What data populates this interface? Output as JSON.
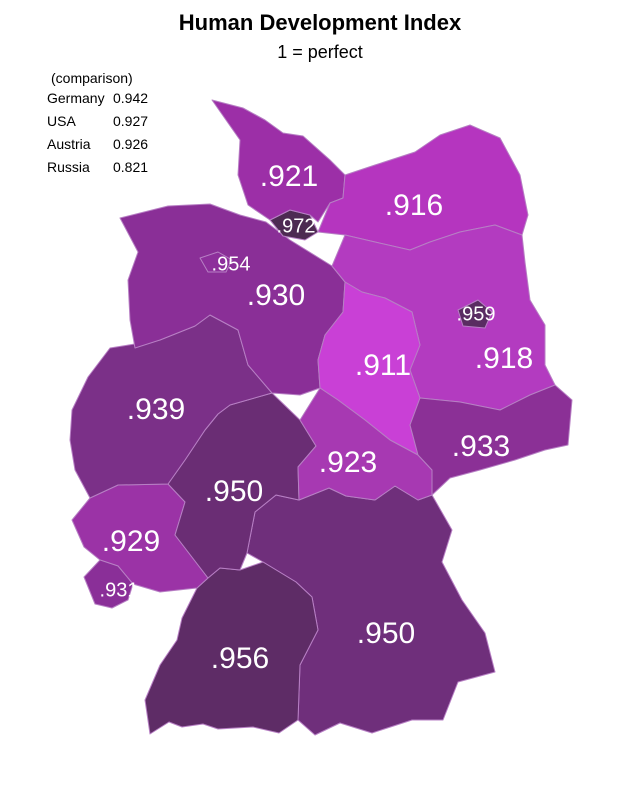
{
  "title": "Human Development Index",
  "subtitle": "1 = perfect",
  "legend": {
    "heading": "(comparison)",
    "rows": [
      {
        "country": "Germany",
        "value": "0.942"
      },
      {
        "country": "USA",
        "value": "0.927"
      },
      {
        "country": "Austria",
        "value": "0.926"
      },
      {
        "country": "Russia",
        "value": "0.821"
      }
    ]
  },
  "states": {
    "schleswig_holstein": {
      "label": ".921",
      "color": "#9c2fa7"
    },
    "hamburg": {
      "label": ".972",
      "color": "#4d2a52"
    },
    "mecklenburg_vorpommern": {
      "label": ".916",
      "color": "#b535bf"
    },
    "bremen": {
      "label": ".954",
      "color": "#8d2f9b"
    },
    "niedersachsen": {
      "label": ".930",
      "color": "#8a2f97"
    },
    "brandenburg": {
      "label": ".918",
      "color": "#b33bc0"
    },
    "berlin": {
      "label": ".959",
      "color": "#5a2c62"
    },
    "sachsen_anhalt": {
      "label": ".911",
      "color": "#c940d6"
    },
    "nordrhein_westfalen": {
      "label": ".939",
      "color": "#7b3088"
    },
    "sachsen": {
      "label": ".933",
      "color": "#8b3096"
    },
    "thueringen": {
      "label": ".923",
      "color": "#a739b2"
    },
    "hessen": {
      "label": ".950",
      "color": "#6a2d74"
    },
    "rheinland_pfalz": {
      "label": ".929",
      "color": "#9b33a6"
    },
    "saarland": {
      "label": ".931",
      "color": "#8a2f98"
    },
    "bayern": {
      "label": ".950",
      "color": "#6f2f7b"
    },
    "baden_wuerttemberg": {
      "label": ".956",
      "color": "#5e2c66"
    }
  }
}
